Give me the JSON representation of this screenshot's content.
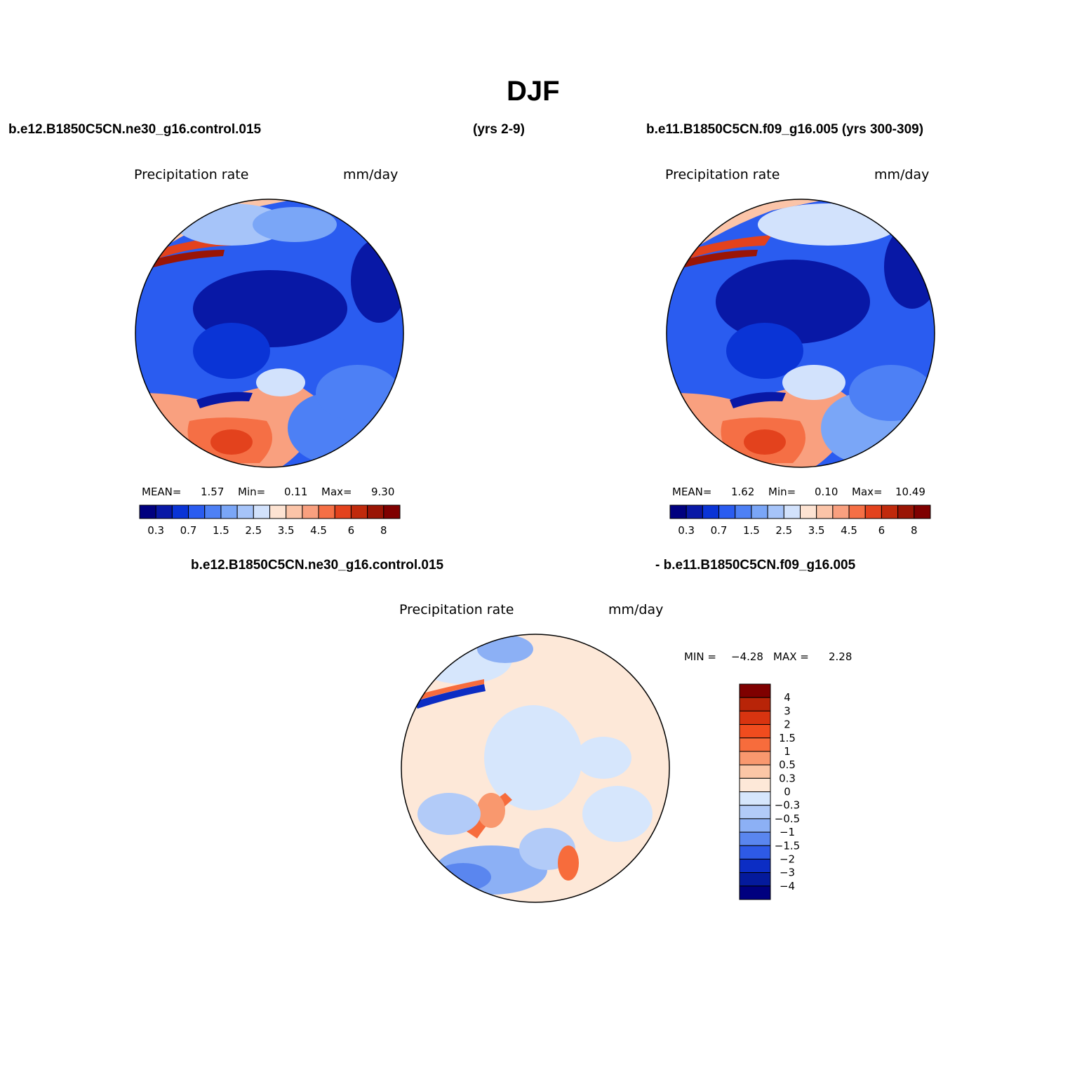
{
  "title": "DJF",
  "panels": [
    {
      "case_name": "b.e12.B1850C5CN.ne30_g16.control.015",
      "years": "(yrs 2-9)",
      "variable": "Precipitation rate",
      "units": "mm/day",
      "mean_label": "MEAN=",
      "mean": "1.57",
      "min_label": "Min=",
      "min": "0.11",
      "max_label": "Max=",
      "max": "9.30"
    },
    {
      "case_name": "b.e11.B1850C5CN.f09_g16.005 (yrs 300-309)",
      "variable": "Precipitation rate",
      "units": "mm/day",
      "mean_label": "MEAN=",
      "mean": "1.62",
      "min_label": "Min=",
      "min": "0.10",
      "max_label": "Max=",
      "max": "10.49"
    }
  ],
  "difference": {
    "case_a": "b.e12.B1850C5CN.ne30_g16.control.015",
    "case_b": "- b.e11.B1850C5CN.f09_g16.005",
    "variable": "Precipitation rate",
    "units": "mm/day",
    "min_label": "MIN =",
    "min": "−4.28",
    "max_label": "MAX =",
    "max": "2.28"
  },
  "chart_data": [
    {
      "type": "heatmap",
      "map_projection": "north-polar-stereographic",
      "colorbar_orientation": "horizontal",
      "colorbar_levels": [
        "0.3",
        "0.7",
        "1.5",
        "2.5",
        "3.5",
        "4.5",
        "6",
        "8"
      ],
      "colorbar_colors": [
        "#00007f",
        "#0818a6",
        "#0a34d6",
        "#2a5cf0",
        "#4d80f5",
        "#7aa6f7",
        "#a6c4f9",
        "#d2e2fc",
        "#fde3d2",
        "#fbc4a8",
        "#f9a07f",
        "#f56f45",
        "#e3421d",
        "#c02a0c",
        "#9a1505",
        "#7f0000"
      ]
    },
    {
      "type": "heatmap",
      "map_projection": "north-polar-stereographic",
      "colorbar_orientation": "horizontal",
      "colorbar_levels": [
        "0.3",
        "0.7",
        "1.5",
        "2.5",
        "3.5",
        "4.5",
        "6",
        "8"
      ],
      "colorbar_colors": [
        "#00007f",
        "#0818a6",
        "#0a34d6",
        "#2a5cf0",
        "#4d80f5",
        "#7aa6f7",
        "#a6c4f9",
        "#d2e2fc",
        "#fde3d2",
        "#fbc4a8",
        "#f9a07f",
        "#f56f45",
        "#e3421d",
        "#c02a0c",
        "#9a1505",
        "#7f0000"
      ]
    },
    {
      "type": "heatmap",
      "map_projection": "north-polar-stereographic",
      "colorbar_orientation": "vertical",
      "colorbar_levels": [
        "4",
        "3",
        "2",
        "1.5",
        "1",
        "0.5",
        "0.3",
        "0",
        "−0.3",
        "−0.5",
        "−1",
        "−1.5",
        "−2",
        "−3",
        "−4"
      ],
      "colorbar_colors": [
        "#7f0000",
        "#b82408",
        "#d83410",
        "#f04c1e",
        "#f76c3c",
        "#f9986e",
        "#fbc6a6",
        "#fde8d8",
        "#d6e6fc",
        "#b2cbf8",
        "#8cb0f5",
        "#5a86ef",
        "#2e5ae6",
        "#0c2dc4",
        "#041a9c",
        "#00007f"
      ]
    }
  ]
}
